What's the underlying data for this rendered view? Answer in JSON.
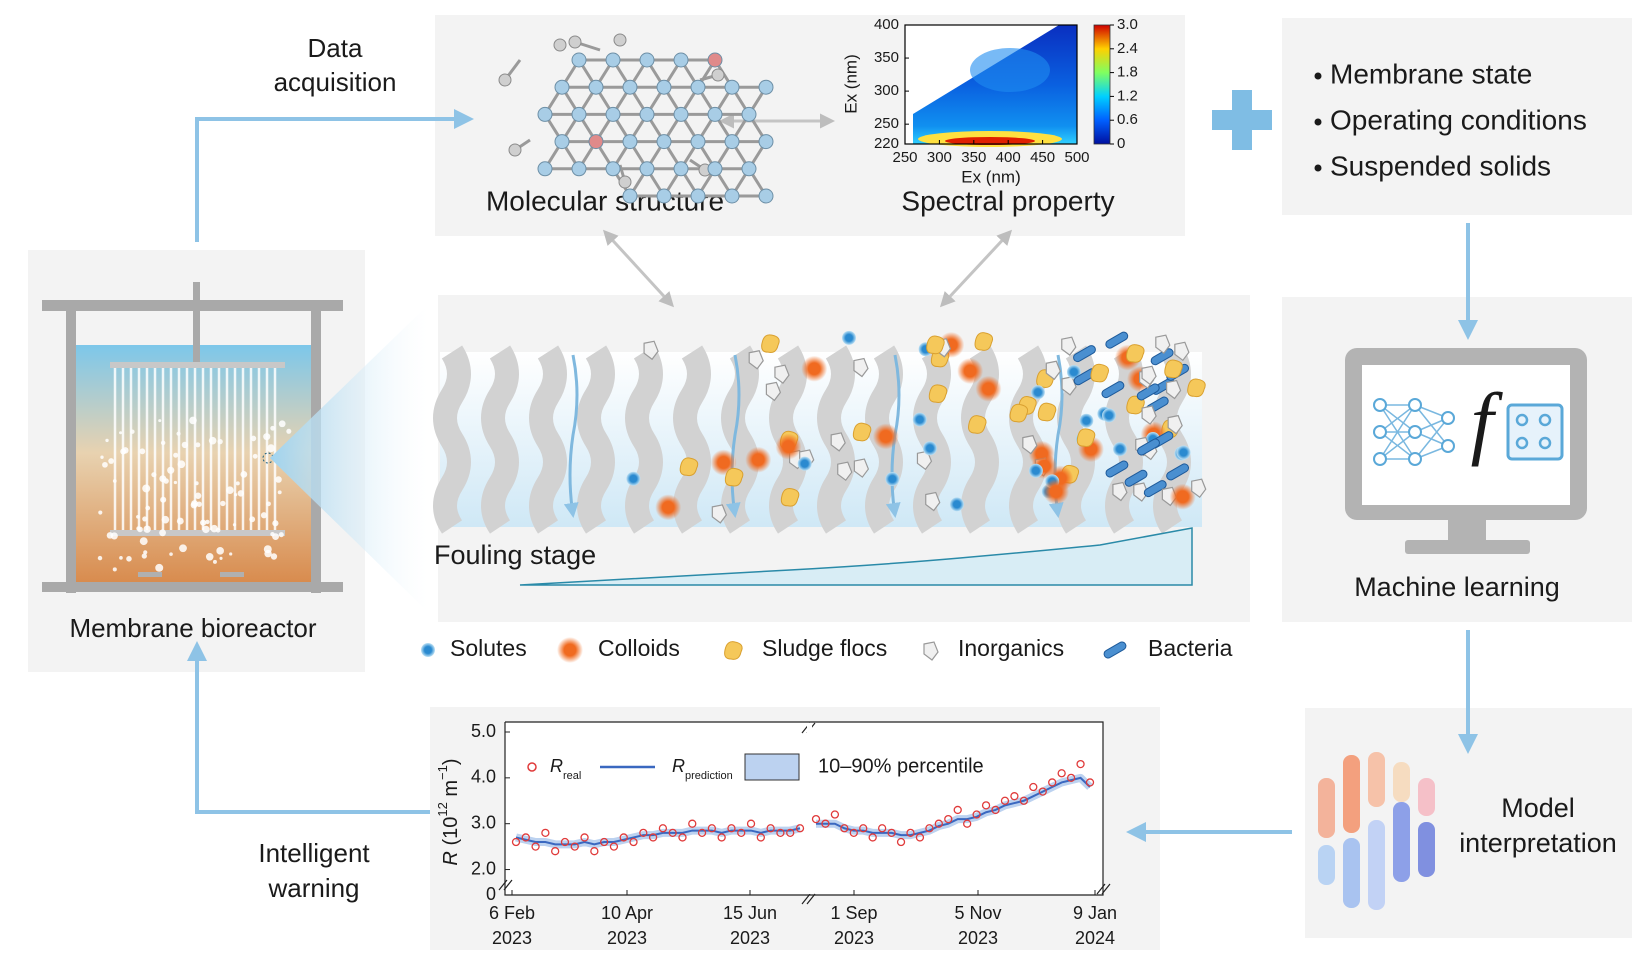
{
  "labels": {
    "data_acquisition": [
      "Data",
      "acquisition"
    ],
    "molecular_structure": "Molecular structure",
    "spectral_property": "Spectral property",
    "membrane_bioreactor": "Membrane bioreactor",
    "fouling_stage": "Fouling stage",
    "machine_learning": "Machine learning",
    "ml_symbol": "f",
    "model_interpretation": [
      "Model",
      "interpretation"
    ],
    "intelligent_warning": [
      "Intelligent",
      "warning"
    ]
  },
  "features": [
    "Membrane state",
    "Operating conditions",
    "Suspended solids"
  ],
  "foulant_legend": [
    "Solutes",
    "Colloids",
    "Sludge flocs",
    "Inorganics",
    "Bacteria"
  ],
  "spectrum": {
    "type": "heatmap",
    "x_label": "Ex (nm)",
    "y_label": "Ex (nm)",
    "xlim": [
      250,
      500
    ],
    "xticks": [
      250,
      300,
      350,
      400,
      450,
      500
    ],
    "ylim": [
      220,
      400
    ],
    "yticks": [
      220,
      250,
      300,
      350,
      400
    ],
    "colorbar_lim": [
      0,
      3
    ],
    "colorbar_ticks": [
      0,
      {
        "value": 0.6,
        "label": "0.6"
      },
      {
        "value": 1.2,
        "label": "1.2"
      },
      {
        "value": 1.8,
        "label": "1.8"
      },
      {
        "value": 2.4,
        "label": "2.4"
      },
      {
        "value": 3,
        "label": "3.0"
      }
    ]
  },
  "performance_chart": {
    "type": "line",
    "y_label": [
      "R",
      " (10",
      "12",
      " m",
      "−1",
      ")"
    ],
    "ylim": [
      1.75,
      5
    ],
    "yticks": [
      {
        "value": 2,
        "label": "2.0"
      },
      {
        "value": 3,
        "label": "3.0"
      },
      {
        "value": 4,
        "label": "4.0"
      },
      {
        "value": 5,
        "label": "5.0"
      }
    ],
    "y_break_tick": 0,
    "xticks": [
      [
        "6 Feb",
        "2023"
      ],
      [
        "10 Apr",
        "2023"
      ],
      [
        "15 Jun",
        "2023"
      ],
      [
        "1 Sep",
        "2023"
      ],
      [
        "5 Nov",
        "2023"
      ],
      [
        "9 Jan",
        "2024"
      ]
    ],
    "legend": [
      {
        "symbol": "R",
        "subscript": "real",
        "color": "#e03a3a"
      },
      {
        "symbol": "R",
        "subscript": "prediction",
        "color": "#3a68c0"
      },
      {
        "label": "10–90% percentile",
        "color": "#bcd2f0"
      }
    ],
    "segments": [
      {
        "real": [
          2.6,
          2.7,
          2.5,
          2.8,
          2.4,
          2.6,
          2.5,
          2.7,
          2.4,
          2.6,
          2.5,
          2.7,
          2.6,
          2.8,
          2.7,
          2.9,
          2.8,
          2.7,
          3.0,
          2.8,
          2.9,
          2.7,
          2.9,
          2.8,
          3.0,
          2.7,
          2.9,
          2.8,
          2.8,
          2.9
        ],
        "prediction": [
          2.7,
          2.65,
          2.6,
          2.6,
          2.55,
          2.55,
          2.55,
          2.6,
          2.55,
          2.6,
          2.6,
          2.65,
          2.7,
          2.75,
          2.75,
          2.8,
          2.8,
          2.8,
          2.85,
          2.85,
          2.85,
          2.8,
          2.85,
          2.85,
          2.85,
          2.8,
          2.85,
          2.85,
          2.85,
          2.9
        ]
      },
      {
        "real": [
          3.1,
          3.0,
          3.2,
          2.9,
          2.8,
          2.9,
          2.7,
          2.9,
          2.8,
          2.6,
          2.8,
          2.7,
          2.9,
          3.0,
          3.1,
          3.3,
          3.0,
          3.2,
          3.4,
          3.3,
          3.5,
          3.6,
          3.5,
          3.8,
          3.7,
          3.9,
          4.1,
          4.0,
          4.3,
          3.9
        ],
        "prediction": [
          3.0,
          3.0,
          3.0,
          2.9,
          2.85,
          2.85,
          2.8,
          2.8,
          2.8,
          2.75,
          2.75,
          2.8,
          2.85,
          2.95,
          3.0,
          3.1,
          3.1,
          3.15,
          3.25,
          3.3,
          3.4,
          3.45,
          3.5,
          3.6,
          3.7,
          3.8,
          3.9,
          3.95,
          4.0,
          3.8
        ]
      }
    ]
  }
}
